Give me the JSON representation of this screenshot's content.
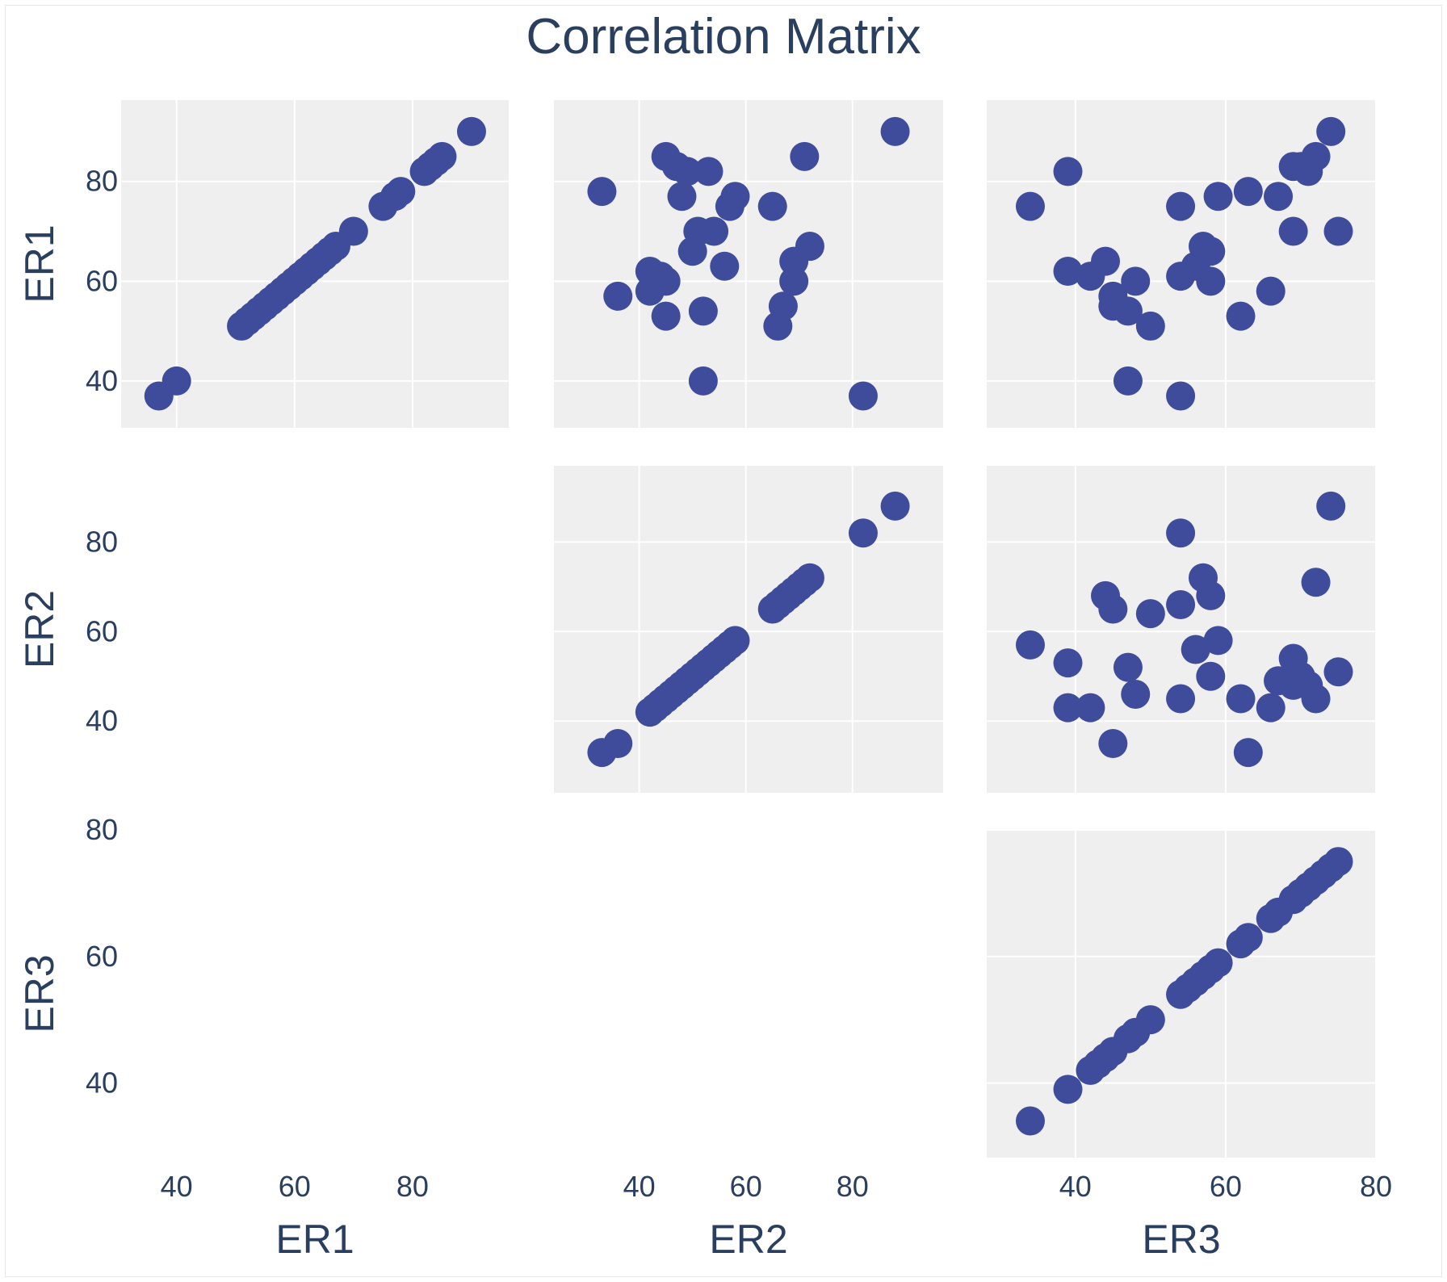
{
  "chart_data": {
    "type": "scatter",
    "title": "Correlation Matrix",
    "variables": [
      "ER1",
      "ER2",
      "ER3"
    ],
    "marker_color": "#3f4c9b",
    "plot_background": "#efefef",
    "grid": true,
    "x_ticks": {
      "ER1": [
        "40",
        "60",
        "80"
      ],
      "ER2": [
        "40",
        "60",
        "80"
      ],
      "ER3": [
        "40",
        "60",
        "80"
      ]
    },
    "y_ticks": {
      "ER1": [
        "40",
        "60",
        "80"
      ],
      "ER2": [
        "40",
        "60",
        "80"
      ],
      "ER3": [
        "40",
        "60",
        "80"
      ]
    },
    "axis_ranges": {
      "ER1": [
        30.6,
        96.3
      ],
      "ER2": [
        24.0,
        97.0
      ],
      "ER3": [
        28.2,
        80.0
      ]
    },
    "panels": [
      {
        "row": "ER1",
        "col": "ER1",
        "points": [
          [
            37,
            37
          ],
          [
            40,
            40
          ],
          [
            51,
            51
          ],
          [
            52,
            52
          ],
          [
            53,
            53
          ],
          [
            54,
            54
          ],
          [
            55,
            55
          ],
          [
            56,
            56
          ],
          [
            57,
            57
          ],
          [
            58,
            58
          ],
          [
            59,
            59
          ],
          [
            60,
            60
          ],
          [
            61,
            61
          ],
          [
            62,
            62
          ],
          [
            63,
            63
          ],
          [
            64,
            64
          ],
          [
            65,
            65
          ],
          [
            66,
            66
          ],
          [
            67,
            67
          ],
          [
            70,
            70
          ],
          [
            75,
            75
          ],
          [
            77,
            77
          ],
          [
            78,
            78
          ],
          [
            82,
            82
          ],
          [
            83,
            83
          ],
          [
            84,
            84
          ],
          [
            85,
            85
          ],
          [
            90,
            90
          ]
        ]
      },
      {
        "row": "ER1",
        "col": "ER2",
        "points": [
          [
            33,
            78
          ],
          [
            36,
            57
          ],
          [
            42,
            62
          ],
          [
            42,
            58
          ],
          [
            44,
            61
          ],
          [
            45,
            60
          ],
          [
            45,
            53
          ],
          [
            45,
            85
          ],
          [
            47,
            83
          ],
          [
            48,
            77
          ],
          [
            49,
            82
          ],
          [
            50,
            66
          ],
          [
            51,
            70
          ],
          [
            52,
            54
          ],
          [
            52,
            40
          ],
          [
            53,
            82
          ],
          [
            54,
            70
          ],
          [
            56,
            63
          ],
          [
            57,
            75
          ],
          [
            58,
            77
          ],
          [
            65,
            75
          ],
          [
            66,
            51
          ],
          [
            67,
            55
          ],
          [
            69,
            60
          ],
          [
            69,
            64
          ],
          [
            71,
            85
          ],
          [
            72,
            67
          ],
          [
            82,
            37
          ],
          [
            88,
            90
          ]
        ]
      },
      {
        "row": "ER1",
        "col": "ER3",
        "points": [
          [
            34,
            75
          ],
          [
            39,
            82
          ],
          [
            39,
            62
          ],
          [
            42,
            61
          ],
          [
            44,
            64
          ],
          [
            45,
            57
          ],
          [
            45,
            55
          ],
          [
            47,
            54
          ],
          [
            47,
            40
          ],
          [
            48,
            60
          ],
          [
            50,
            51
          ],
          [
            54,
            37
          ],
          [
            54,
            61
          ],
          [
            54,
            75
          ],
          [
            56,
            63
          ],
          [
            57,
            67
          ],
          [
            58,
            66
          ],
          [
            58,
            60
          ],
          [
            59,
            77
          ],
          [
            62,
            53
          ],
          [
            63,
            78
          ],
          [
            66,
            58
          ],
          [
            67,
            77
          ],
          [
            69,
            83
          ],
          [
            69,
            70
          ],
          [
            70,
            83
          ],
          [
            71,
            82
          ],
          [
            72,
            85
          ],
          [
            74,
            90
          ],
          [
            75,
            70
          ]
        ]
      },
      {
        "row": "ER2",
        "col": "ER2",
        "points": [
          [
            33,
            33
          ],
          [
            36,
            35
          ],
          [
            42,
            42
          ],
          [
            43,
            43
          ],
          [
            44,
            44
          ],
          [
            45,
            45
          ],
          [
            46,
            46
          ],
          [
            47,
            47
          ],
          [
            48,
            48
          ],
          [
            49,
            49
          ],
          [
            50,
            50
          ],
          [
            51,
            51
          ],
          [
            52,
            52
          ],
          [
            53,
            53
          ],
          [
            54,
            54
          ],
          [
            55,
            55
          ],
          [
            56,
            56
          ],
          [
            57,
            57
          ],
          [
            58,
            58
          ],
          [
            65,
            65
          ],
          [
            66,
            66
          ],
          [
            67,
            67
          ],
          [
            68,
            68
          ],
          [
            69,
            69
          ],
          [
            70,
            70
          ],
          [
            71,
            71
          ],
          [
            72,
            72
          ],
          [
            82,
            82
          ],
          [
            88,
            88
          ]
        ]
      },
      {
        "row": "ER2",
        "col": "ER3",
        "points": [
          [
            34,
            57
          ],
          [
            39,
            53
          ],
          [
            39,
            43
          ],
          [
            42,
            43
          ],
          [
            44,
            68
          ],
          [
            45,
            65
          ],
          [
            45,
            35
          ],
          [
            47,
            52
          ],
          [
            48,
            46
          ],
          [
            50,
            64
          ],
          [
            54,
            82
          ],
          [
            54,
            45
          ],
          [
            54,
            66
          ],
          [
            56,
            56
          ],
          [
            57,
            72
          ],
          [
            58,
            68
          ],
          [
            59,
            58
          ],
          [
            58,
            50
          ],
          [
            62,
            45
          ],
          [
            63,
            33
          ],
          [
            66,
            43
          ],
          [
            67,
            49
          ],
          [
            69,
            54
          ],
          [
            70,
            50
          ],
          [
            71,
            48
          ],
          [
            72,
            71
          ],
          [
            72,
            45
          ],
          [
            74,
            88
          ],
          [
            75,
            51
          ],
          [
            69,
            48
          ]
        ]
      },
      {
        "row": "ER3",
        "col": "ER3",
        "points": [
          [
            34,
            34
          ],
          [
            39,
            39
          ],
          [
            42,
            42
          ],
          [
            43,
            43
          ],
          [
            44,
            44
          ],
          [
            45,
            45
          ],
          [
            47,
            47
          ],
          [
            48,
            48
          ],
          [
            50,
            50
          ],
          [
            54,
            54
          ],
          [
            55,
            55
          ],
          [
            56,
            56
          ],
          [
            57,
            57
          ],
          [
            58,
            58
          ],
          [
            59,
            59
          ],
          [
            62,
            62
          ],
          [
            63,
            63
          ],
          [
            66,
            66
          ],
          [
            67,
            67
          ],
          [
            69,
            69
          ],
          [
            70,
            70
          ],
          [
            71,
            71
          ],
          [
            72,
            72
          ],
          [
            73,
            73
          ],
          [
            74,
            74
          ],
          [
            75,
            75
          ]
        ]
      }
    ]
  }
}
